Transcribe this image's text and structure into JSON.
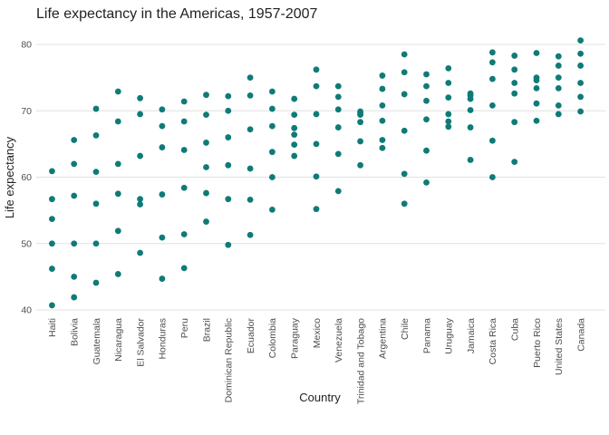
{
  "chart_data": {
    "type": "scatter",
    "title": "Life expectancy in the Americas, 1957-2007",
    "xlabel": "Country",
    "ylabel": "Life expectancy",
    "ylim": [
      39,
      81.5
    ],
    "yticks": [
      40,
      50,
      60,
      70,
      80
    ],
    "grid": true,
    "point_color": "#0f7b77",
    "categories": [
      "Haiti",
      "Bolivia",
      "Guatemala",
      "Nicaragua",
      "El Salvador",
      "Honduras",
      "Peru",
      "Brazil",
      "Dominican Republic",
      "Ecuador",
      "Colombia",
      "Paraguay",
      "Mexico",
      "Venezuela",
      "Trinidad and Tobago",
      "Argentina",
      "Chile",
      "Panama",
      "Uruguay",
      "Jamaica",
      "Costa Rica",
      "Cuba",
      "Puerto Rico",
      "United States",
      "Canada"
    ],
    "values": [
      [
        40.7,
        46.2,
        50.0,
        53.7,
        56.7,
        60.9
      ],
      [
        41.9,
        45.0,
        50.0,
        57.2,
        62.0,
        65.6
      ],
      [
        44.1,
        50.0,
        56.0,
        60.8,
        66.3,
        70.3
      ],
      [
        45.4,
        51.9,
        57.5,
        62.0,
        68.4,
        72.9
      ],
      [
        48.6,
        55.9,
        56.7,
        63.2,
        69.5,
        71.9
      ],
      [
        44.7,
        50.9,
        57.4,
        64.5,
        67.7,
        70.2
      ],
      [
        46.3,
        51.4,
        58.4,
        64.1,
        68.4,
        71.4
      ],
      [
        53.3,
        57.6,
        61.5,
        65.2,
        69.4,
        72.4
      ],
      [
        49.8,
        56.7,
        61.8,
        66.0,
        70.0,
        72.2
      ],
      [
        51.3,
        56.6,
        61.3,
        67.2,
        72.3,
        75.0
      ],
      [
        55.1,
        60.0,
        63.8,
        67.7,
        70.3,
        72.9
      ],
      [
        63.2,
        64.9,
        66.4,
        67.4,
        69.4,
        71.8
      ],
      [
        55.2,
        60.1,
        65.0,
        69.5,
        73.7,
        76.2
      ],
      [
        57.9,
        63.5,
        67.5,
        70.2,
        72.1,
        73.7
      ],
      [
        61.8,
        65.4,
        68.3,
        69.4,
        69.9,
        69.7
      ],
      [
        64.4,
        65.6,
        68.5,
        70.8,
        73.3,
        75.3
      ],
      [
        56.0,
        60.5,
        67.0,
        72.5,
        75.8,
        78.5
      ],
      [
        59.2,
        64.0,
        68.7,
        71.5,
        73.7,
        75.5
      ],
      [
        67.6,
        68.4,
        69.5,
        72.0,
        74.2,
        76.4
      ],
      [
        62.6,
        67.5,
        70.1,
        71.8,
        72.3,
        72.6
      ],
      [
        60.0,
        65.5,
        70.8,
        74.8,
        77.3,
        78.8
      ],
      [
        62.3,
        68.3,
        72.6,
        74.2,
        76.2,
        78.3
      ],
      [
        68.5,
        71.1,
        73.4,
        74.6,
        75.0,
        78.7
      ],
      [
        69.5,
        70.8,
        73.4,
        75.0,
        76.8,
        78.2
      ],
      [
        69.9,
        72.1,
        74.2,
        76.8,
        78.6,
        80.6
      ]
    ]
  }
}
